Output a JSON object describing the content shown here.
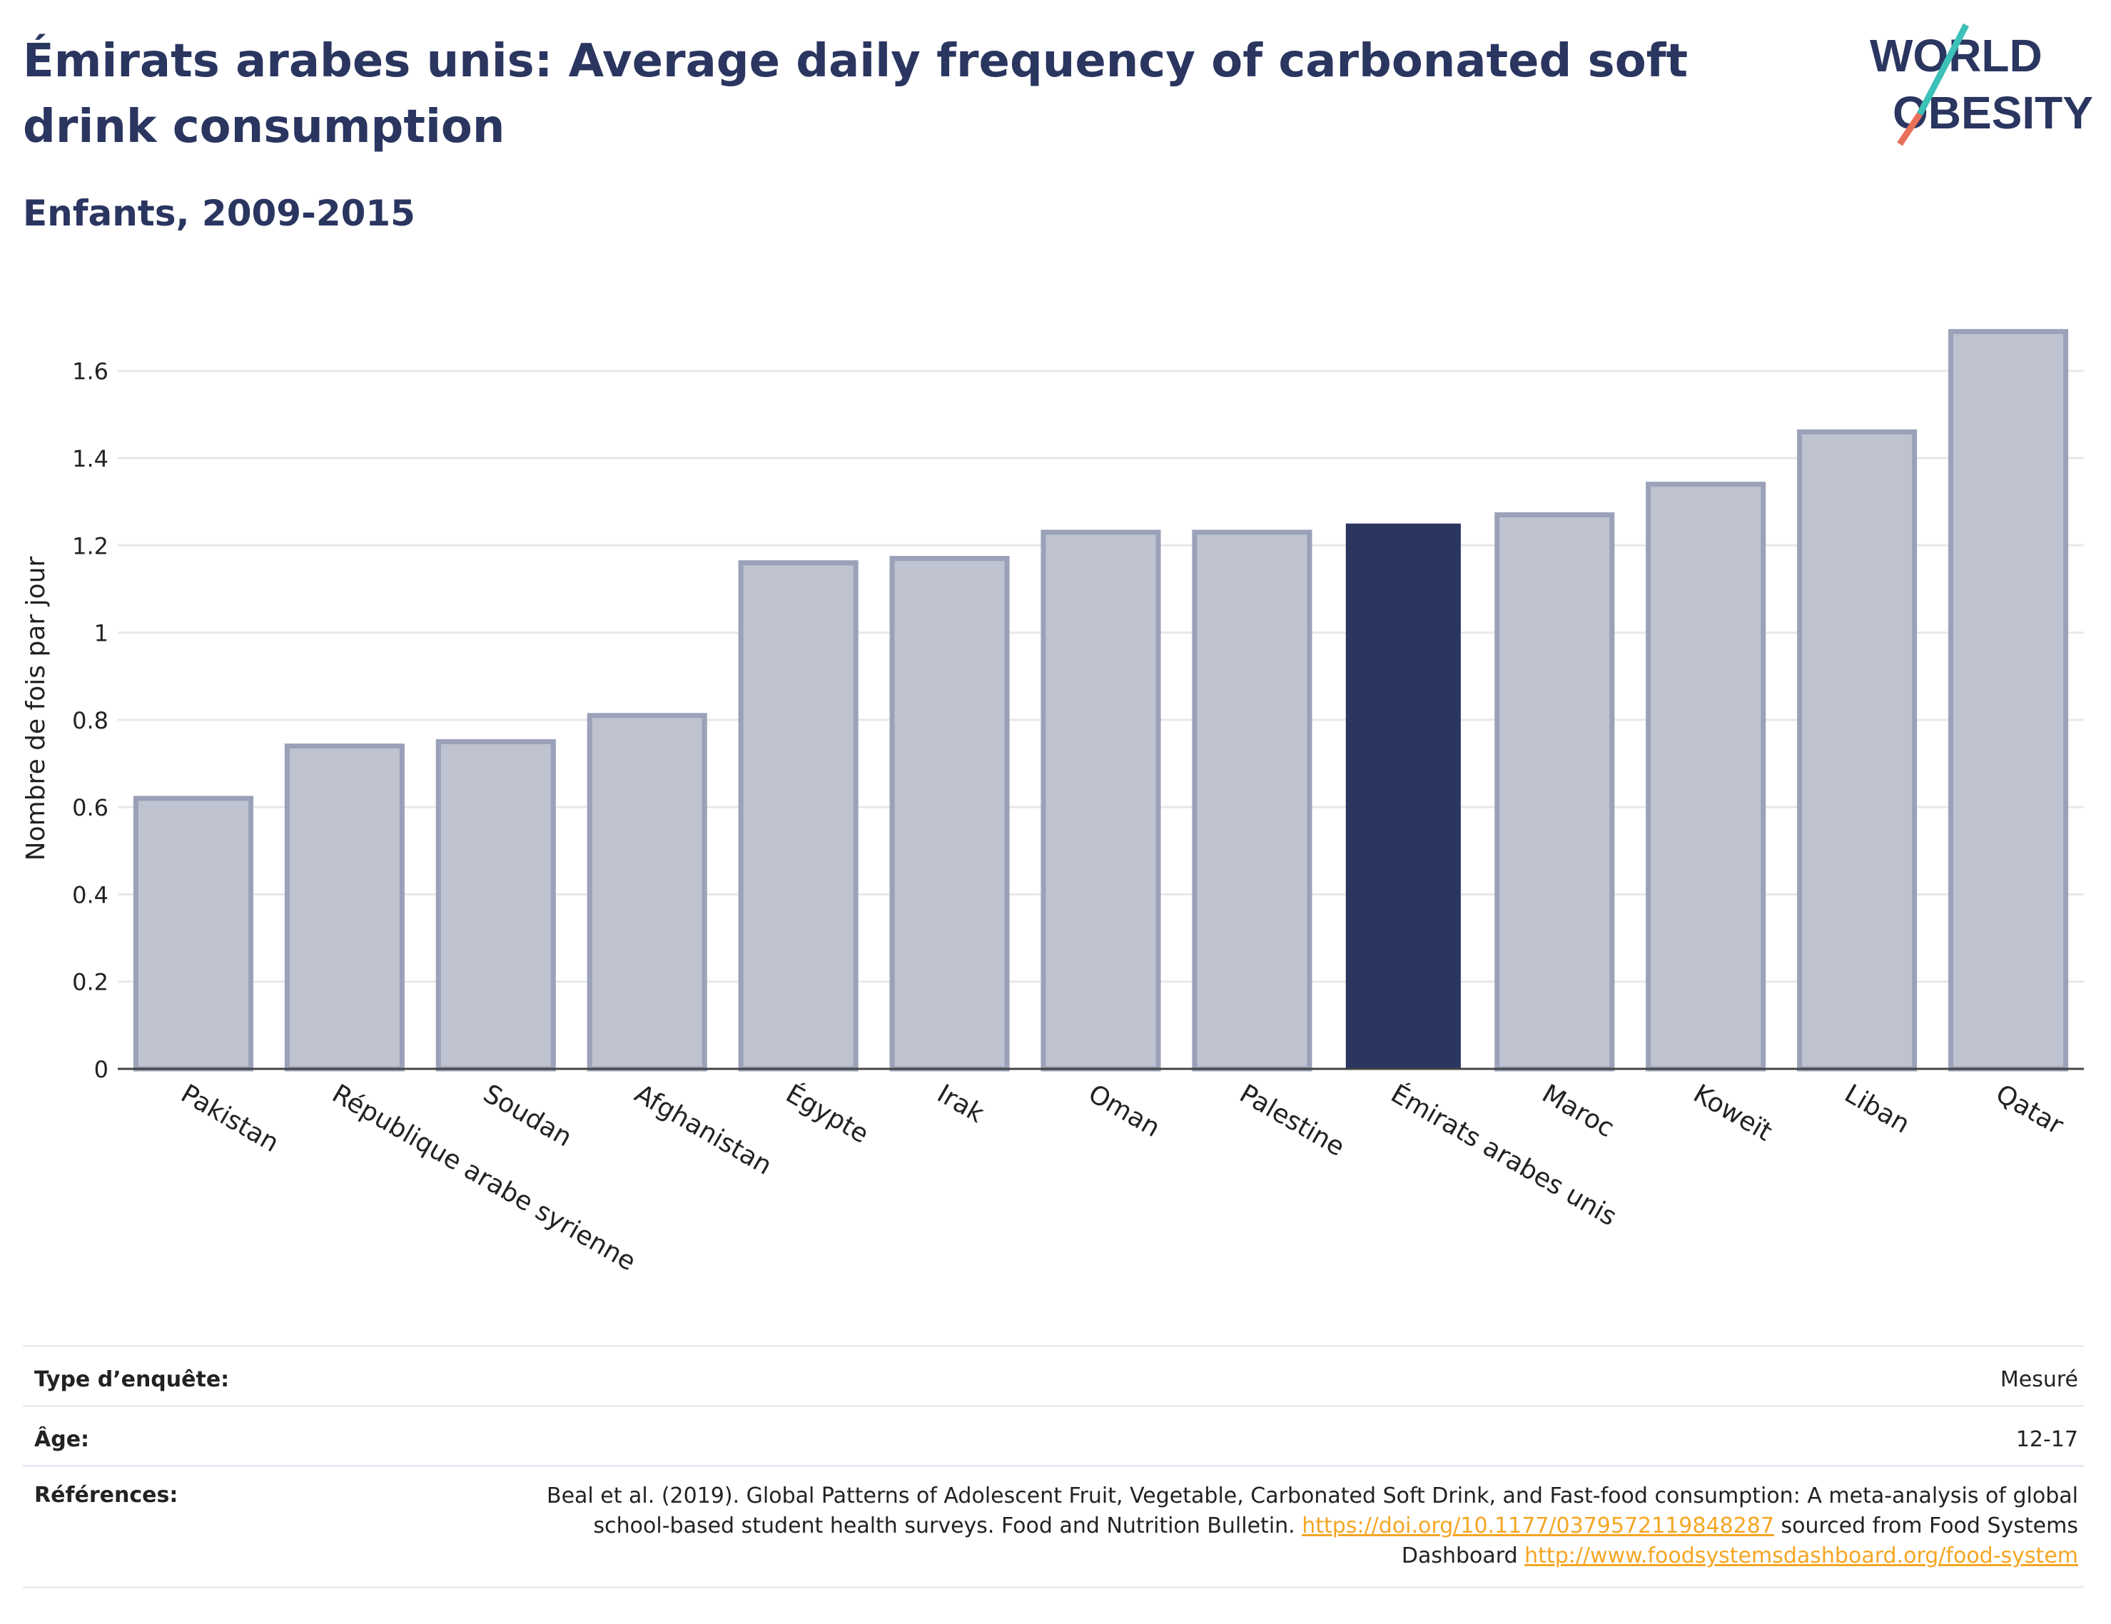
{
  "header": {
    "title": "Émirats arabes unis: Average daily frequency of carbonated soft drink consumption",
    "subtitle": "Enfants, 2009-2015"
  },
  "logo": {
    "line1": "WORLD",
    "line2": "OBESITY",
    "slash_colors": [
      "#3cc0b8",
      "#e8705a"
    ]
  },
  "chart_data": {
    "type": "bar",
    "categories": [
      "Pakistan",
      "République arabe syrienne",
      "Soudan",
      "Afghanistan",
      "Égypte",
      "Irak",
      "Oman",
      "Palestine",
      "Émirats arabes unis",
      "Maroc",
      "Koweït",
      "Liban",
      "Qatar"
    ],
    "values": [
      0.62,
      0.74,
      0.75,
      0.81,
      1.16,
      1.17,
      1.23,
      1.23,
      1.25,
      1.27,
      1.34,
      1.46,
      1.69
    ],
    "highlight": "Émirats arabes unis",
    "ylabel": "Nombre de fois par jour",
    "ylim": [
      0,
      1.75
    ],
    "yticks": [
      0,
      0.2,
      0.4,
      0.6,
      0.8,
      1,
      1.2,
      1.4,
      1.6
    ],
    "ytick_labels": [
      "0",
      "0.2",
      "0.4",
      "0.6",
      "0.8",
      "1",
      "1.2",
      "1.4",
      "1.6"
    ],
    "grid": true,
    "colors": {
      "bar": "#bfc3d0",
      "bar_border": "#9aa1b8",
      "highlight": "#2a3560"
    }
  },
  "meta": {
    "survey_label": "Type d’enquête:",
    "survey_value": "Mesuré",
    "age_label": "Âge:",
    "age_value": "12-17",
    "refs_label": "Références:",
    "refs_text1": "Beal et al. (2019). Global Patterns of Adolescent Fruit, Vegetable, Carbonated Soft Drink, and Fast-food consumption: A meta-analysis of global school-based student health surveys. Food and Nutrition Bulletin. ",
    "refs_link1": "https://doi.org/10.1177/0379572119848287",
    "refs_text2": " sourced from Food Systems Dashboard ",
    "refs_link2": "http://www.foodsystemsdashboard.org/food-system"
  }
}
